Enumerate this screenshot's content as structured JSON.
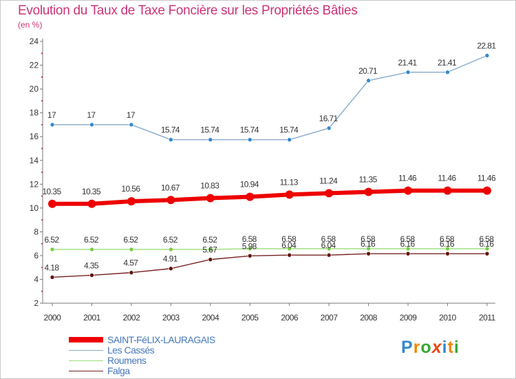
{
  "chart_data": {
    "type": "line",
    "title": "Evolution du Taux de Taxe Foncière sur les Propriétés Bâties",
    "subtitle": "(en %)",
    "xlabel": "",
    "ylabel": "(en %)",
    "categories": [
      "2000",
      "2001",
      "2002",
      "2003",
      "2004",
      "2005",
      "2006",
      "2007",
      "2008",
      "2009",
      "2010",
      "2011"
    ],
    "yticks": [
      2,
      4,
      6,
      8,
      10,
      12,
      14,
      16,
      18,
      20,
      22,
      24
    ],
    "ylim": [
      2,
      24
    ],
    "grid": false,
    "legend_position": "bottom-left",
    "series": [
      {
        "name": "SAINT-FéLIX-LAURAGAIS",
        "color": "#ee0000",
        "marker": "#ee0000",
        "thick": true,
        "values": [
          10.35,
          10.35,
          10.56,
          10.67,
          10.83,
          10.94,
          11.13,
          11.24,
          11.35,
          11.46,
          11.46,
          11.46
        ],
        "labels": [
          "10.35",
          "10.35",
          "10.56",
          "10.67",
          "10.83",
          "10.94",
          "11.13",
          "11.24",
          "11.35",
          "11.46",
          "11.46",
          "11.46"
        ]
      },
      {
        "name": "Les Cassés",
        "color": "#88aacc",
        "marker": "#3388cc",
        "thick": false,
        "values": [
          17,
          17,
          17,
          15.74,
          15.74,
          15.74,
          15.74,
          16.71,
          20.71,
          21.41,
          21.41,
          22.81
        ],
        "labels": [
          "17",
          "17",
          "17",
          "15.74",
          "15.74",
          "15.74",
          "15.74",
          "16.71",
          "20.71",
          "21.41",
          "21.41",
          "22.81"
        ]
      },
      {
        "name": "Roumens",
        "color": "#99dd77",
        "marker": "#77cc44",
        "thick": false,
        "values": [
          6.52,
          6.52,
          6.52,
          6.52,
          6.52,
          6.58,
          6.58,
          6.58,
          6.58,
          6.58,
          6.58,
          6.58
        ],
        "labels": [
          "6.52",
          "6.52",
          "6.52",
          "6.52",
          "6.52",
          "6.58",
          "6.58",
          "6.58",
          "6.58",
          "6.58",
          "6.58",
          "6.58"
        ]
      },
      {
        "name": "Falga",
        "color": "#772222",
        "marker": "#661111",
        "thick": false,
        "values": [
          4.18,
          4.35,
          4.57,
          4.91,
          5.67,
          5.98,
          6.04,
          6.04,
          6.16,
          6.16,
          6.16,
          6.16
        ],
        "labels": [
          "4.18",
          "4.35",
          "4.57",
          "4.91",
          "5.67",
          "5.98",
          "6.04",
          "6.04",
          "6.16",
          "6.16",
          "6.16",
          "6.16"
        ]
      }
    ]
  },
  "logo": {
    "letters": [
      "P",
      "r",
      "o",
      "x",
      "i",
      "t",
      "i"
    ],
    "colors": [
      "#3388cc",
      "#ee8800",
      "#33aa33",
      "#ee4411",
      "#3388cc",
      "#ee8800",
      "#33aa33"
    ]
  }
}
